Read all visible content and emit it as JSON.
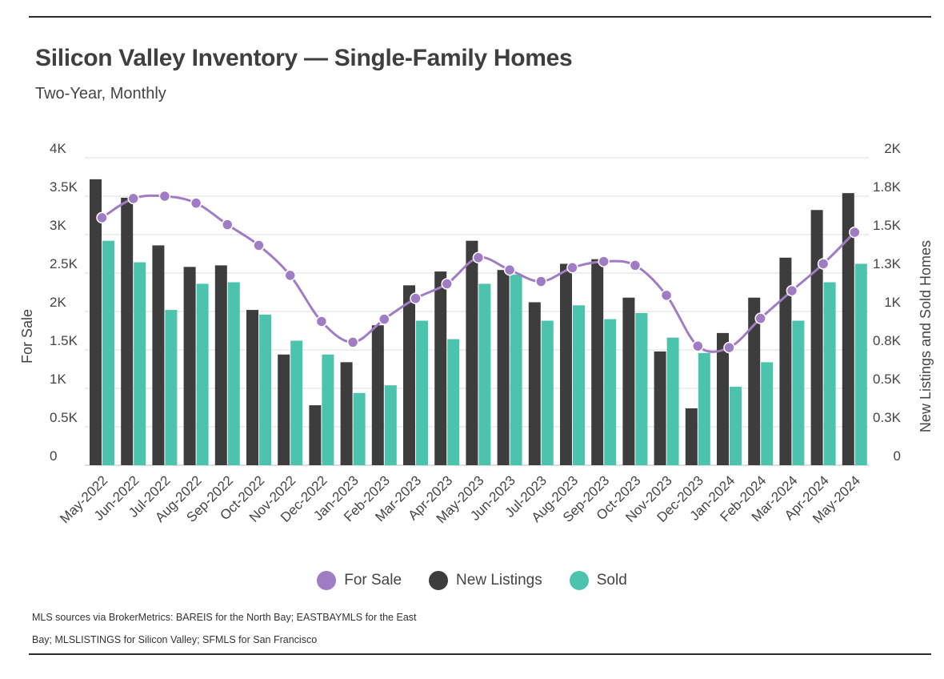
{
  "header": {
    "title": "Silicon Valley Inventory — Single-Family Homes",
    "subtitle": "Two-Year, Monthly"
  },
  "source": {
    "line1": "MLS sources via BrokerMetrics: BAREIS for the North Bay; EASTBAYMLS for the East",
    "line2": "Bay; MLSLISTINGS for Silicon Valley; SFMLS for San Francisco"
  },
  "colors": {
    "for_sale": "#a07cc4",
    "new_listings": "#3d3d3d",
    "sold": "#4cc4ad"
  },
  "chart_data": {
    "type": "bar",
    "categories": [
      "May-2022",
      "Jun-2022",
      "Jul-2022",
      "Aug-2022",
      "Sep-2022",
      "Oct-2022",
      "Nov-2022",
      "Dec-2022",
      "Jan-2023",
      "Feb-2023",
      "Mar-2023",
      "Apr-2023",
      "May-2023",
      "Jun-2023",
      "Jul-2023",
      "Aug-2023",
      "Sep-2023",
      "Oct-2023",
      "Nov-2023",
      "Dec-2023",
      "Jan-2024",
      "Feb-2024",
      "Mar-2024",
      "Apr-2024",
      "May-2024"
    ],
    "series": [
      {
        "name": "For Sale",
        "type": "line",
        "axis": "left",
        "values": [
          3220,
          3470,
          3500,
          3410,
          3130,
          2860,
          2470,
          1870,
          1600,
          1900,
          2170,
          2360,
          2700,
          2540,
          2390,
          2570,
          2650,
          2600,
          2210,
          1550,
          1530,
          1910,
          2270,
          2620,
          3030
        ]
      },
      {
        "name": "New Listings",
        "type": "bar",
        "axis": "right",
        "values": [
          1860,
          1740,
          1430,
          1290,
          1300,
          1010,
          720,
          390,
          670,
          910,
          1170,
          1260,
          1460,
          1270,
          1060,
          1310,
          1340,
          1090,
          740,
          370,
          860,
          1090,
          1350,
          1660,
          1770
        ]
      },
      {
        "name": "Sold",
        "type": "bar",
        "axis": "right",
        "values": [
          1460,
          1320,
          1010,
          1180,
          1190,
          980,
          810,
          720,
          470,
          520,
          940,
          820,
          1180,
          1240,
          940,
          1040,
          950,
          990,
          830,
          730,
          510,
          670,
          940,
          1190,
          1310
        ]
      }
    ],
    "ylabel": "For Sale",
    "y2label": "New Listings and Sold Homes",
    "ylim": [
      0,
      4000
    ],
    "y2lim": [
      0,
      2000
    ],
    "yticks": [
      "0",
      "0.5K",
      "1K",
      "1.5K",
      "2K",
      "2.5K",
      "3K",
      "3.5K",
      "4K"
    ],
    "y2ticks": [
      "0",
      "0.3K",
      "0.5K",
      "0.8K",
      "1K",
      "1.3K",
      "1.5K",
      "1.8K",
      "2K"
    ],
    "legend": [
      {
        "label": "For Sale",
        "color": "#a07cc4"
      },
      {
        "label": "New Listings",
        "color": "#3d3d3d"
      },
      {
        "label": "Sold",
        "color": "#4cc4ad"
      }
    ],
    "grid": true,
    "legend_position": "bottom"
  }
}
